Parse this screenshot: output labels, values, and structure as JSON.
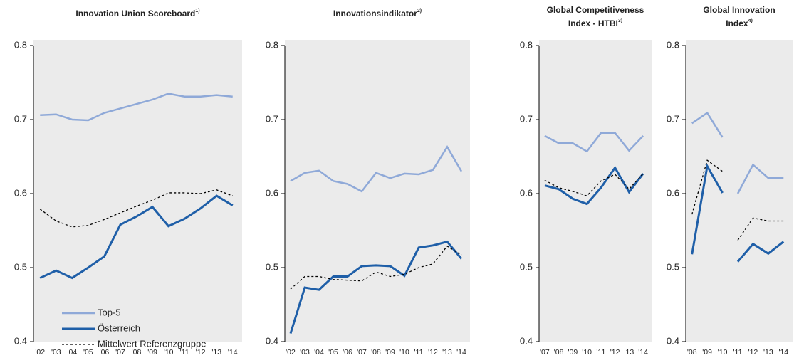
{
  "chart_data": [
    {
      "type": "line",
      "title_lines": [
        "Innovation Union Scoreboard"
      ],
      "title_note": "1)",
      "categories": [
        "'02",
        "'03",
        "'04",
        "'05",
        "'06",
        "'07",
        "'08",
        "'09",
        "'10",
        "'11",
        "'12",
        "'13",
        "'14"
      ],
      "ylim": [
        0.4,
        0.8
      ],
      "yticks": [
        0.4,
        0.5,
        0.6,
        0.7,
        0.8
      ],
      "legend": "lower left",
      "series": [
        {
          "name": "Top-5",
          "color": "#8fa9d8",
          "style": "solid",
          "values": [
            0.706,
            0.707,
            0.7,
            0.699,
            0.709,
            0.715,
            0.721,
            0.727,
            0.735,
            0.731,
            0.731,
            0.733,
            0.731
          ]
        },
        {
          "name": "Österreich",
          "color": "#1f5fa8",
          "style": "solid",
          "values": [
            0.486,
            0.496,
            0.486,
            0.5,
            0.515,
            0.558,
            0.569,
            0.582,
            0.556,
            0.566,
            0.58,
            0.597,
            0.584
          ]
        },
        {
          "name": "Mittelwert Referenzgruppe",
          "color": "#000000",
          "style": "dotted",
          "values": [
            0.579,
            0.563,
            0.555,
            0.557,
            0.565,
            0.574,
            0.583,
            0.591,
            0.601,
            0.601,
            0.6,
            0.605,
            0.597
          ]
        }
      ]
    },
    {
      "type": "line",
      "title_lines": [
        "Innovationsindikator"
      ],
      "title_note": "2)",
      "categories": [
        "'02",
        "'03",
        "'04",
        "'05",
        "'06",
        "'07",
        "'08",
        "'09",
        "'10",
        "'11",
        "'12",
        "'13",
        "'14"
      ],
      "ylim": [
        0.4,
        0.8
      ],
      "yticks": [
        0.4,
        0.5,
        0.6,
        0.7,
        0.8
      ],
      "series": [
        {
          "color": "#8fa9d8",
          "style": "solid",
          "values": [
            0.617,
            0.628,
            0.631,
            0.617,
            0.613,
            0.603,
            0.628,
            0.621,
            0.627,
            0.626,
            0.632,
            0.663,
            0.63
          ]
        },
        {
          "color": "#1f5fa8",
          "style": "solid",
          "values": [
            0.411,
            0.473,
            0.47,
            0.488,
            0.488,
            0.502,
            0.503,
            0.502,
            0.489,
            0.527,
            0.53,
            0.535,
            0.512
          ]
        },
        {
          "color": "#000000",
          "style": "dotted",
          "values": [
            0.471,
            0.488,
            0.488,
            0.484,
            0.483,
            0.482,
            0.494,
            0.488,
            0.491,
            0.5,
            0.505,
            0.529,
            0.517
          ]
        }
      ]
    },
    {
      "type": "line",
      "title_lines": [
        "Global Competitiveness",
        "Index - HTBI"
      ],
      "title_note": "3)",
      "categories": [
        "'07",
        "'08",
        "'09",
        "'10",
        "'11",
        "'12",
        "'13",
        "'14"
      ],
      "ylim": [
        0.4,
        0.8
      ],
      "yticks": [
        0.4,
        0.5,
        0.6,
        0.7,
        0.8
      ],
      "series": [
        {
          "color": "#8fa9d8",
          "style": "solid",
          "values": [
            0.678,
            0.668,
            0.668,
            0.657,
            0.682,
            0.682,
            0.658,
            0.678
          ]
        },
        {
          "color": "#1f5fa8",
          "style": "solid",
          "values": [
            0.611,
            0.606,
            0.593,
            0.586,
            0.608,
            0.635,
            0.602,
            0.627
          ]
        },
        {
          "color": "#000000",
          "style": "dotted",
          "values": [
            0.618,
            0.608,
            0.603,
            0.597,
            0.617,
            0.626,
            0.606,
            0.627
          ]
        }
      ]
    },
    {
      "type": "line",
      "title_lines": [
        "Global Innovation",
        "Index"
      ],
      "title_note": "4)",
      "categories": [
        "'08",
        "'09",
        "'10",
        "'11",
        "'12",
        "'13",
        "'14"
      ],
      "break_after": 2,
      "ylim": [
        0.4,
        0.8
      ],
      "yticks": [
        0.4,
        0.5,
        0.6,
        0.7,
        0.8
      ],
      "series": [
        {
          "color": "#8fa9d8",
          "style": "solid",
          "values": [
            0.695,
            0.709,
            0.676,
            0.6,
            0.639,
            0.621,
            0.621
          ]
        },
        {
          "color": "#1f5fa8",
          "style": "solid",
          "values": [
            0.518,
            0.637,
            0.601,
            0.508,
            0.532,
            0.519,
            0.535
          ]
        },
        {
          "color": "#000000",
          "style": "dotted",
          "values": [
            0.572,
            0.645,
            0.63,
            0.537,
            0.567,
            0.563,
            0.563
          ]
        }
      ]
    }
  ]
}
